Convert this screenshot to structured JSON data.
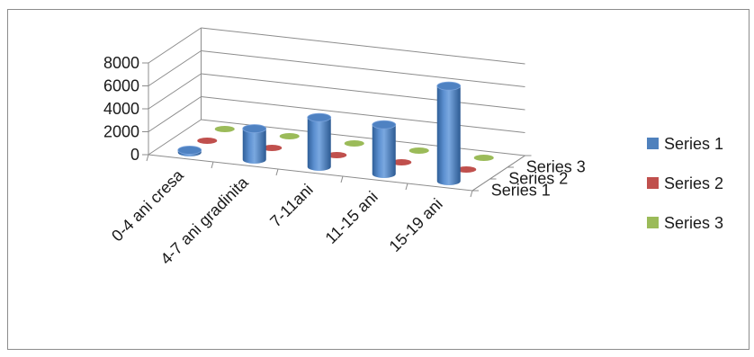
{
  "chart_data": {
    "type": "bar",
    "subtype": "3d-cylinder",
    "title": "",
    "categories": [
      "0-4 ani  cresa",
      "4-7 ani gradinita",
      "7-11ani",
      "11-15 ani",
      "15-19 ani"
    ],
    "series": [
      {
        "name": "Series 1",
        "values": [
          200,
          2700,
          4300,
          4300,
          8300
        ],
        "color": "#4f81bd"
      },
      {
        "name": "Series 2",
        "values": [
          0,
          0,
          0,
          0,
          0
        ],
        "color": "#c0504d"
      },
      {
        "name": "Series 3",
        "values": [
          0,
          0,
          0,
          0,
          0
        ],
        "color": "#9bbb59"
      }
    ],
    "ylim": [
      0,
      8000
    ],
    "yticks": [
      "0",
      "2000",
      "4000",
      "6000",
      "8000"
    ],
    "depth_labels": [
      "Series 1",
      "Series 2",
      "Series 3"
    ],
    "grid": true,
    "legend": "right"
  }
}
